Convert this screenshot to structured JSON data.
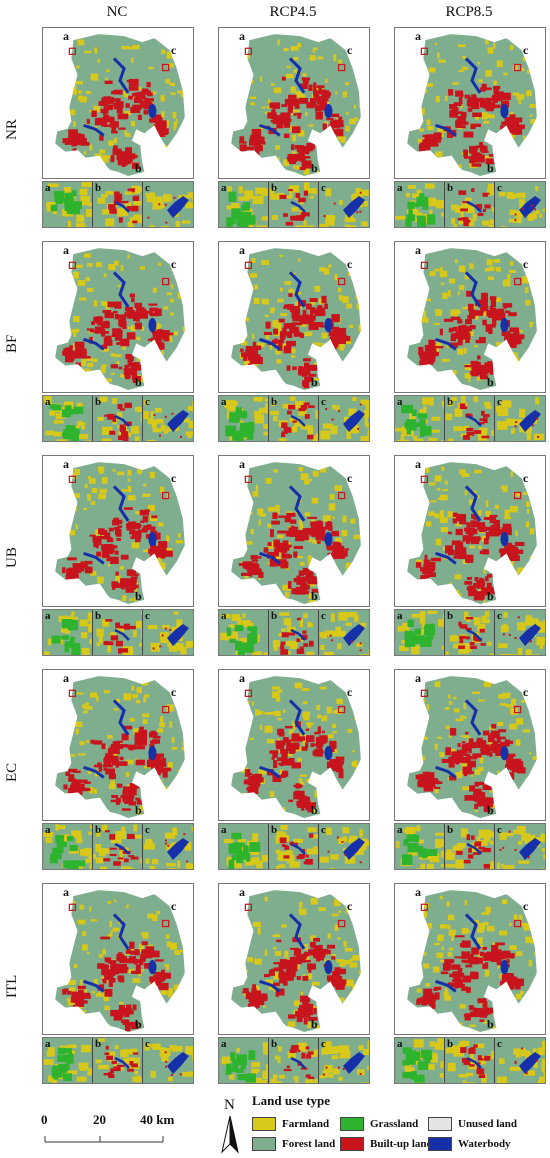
{
  "columns": [
    "NC",
    "RCP4.5",
    "RCP8.5"
  ],
  "rows": [
    "NR",
    "BF",
    "UB",
    "EC",
    "ITL"
  ],
  "map_labels": {
    "a": "a",
    "b": "b",
    "c": "c"
  },
  "inset_labels": [
    "a",
    "b",
    "c"
  ],
  "legend": {
    "title": "Land use type",
    "items": [
      {
        "label": "Farmland",
        "color": "#d8c81a"
      },
      {
        "label": "Grassland",
        "color": "#2db32d"
      },
      {
        "label": "Unused land",
        "color": "#e4e4e4"
      },
      {
        "label": "Forest land",
        "color": "#7fae8f"
      },
      {
        "label": "Built-up land",
        "color": "#c8141c"
      },
      {
        "label": "Waterbody",
        "color": "#1530a8"
      }
    ]
  },
  "scale_bar": {
    "ticks": [
      "0",
      "20",
      "40 km"
    ]
  },
  "north_arrow": {
    "label": "N"
  },
  "colors": {
    "farmland": "#d8c81a",
    "forest": "#7fae8f",
    "builtup": "#c8141c",
    "grassland": "#2db32d",
    "water": "#1530a8",
    "unused": "#e4e4e4"
  }
}
